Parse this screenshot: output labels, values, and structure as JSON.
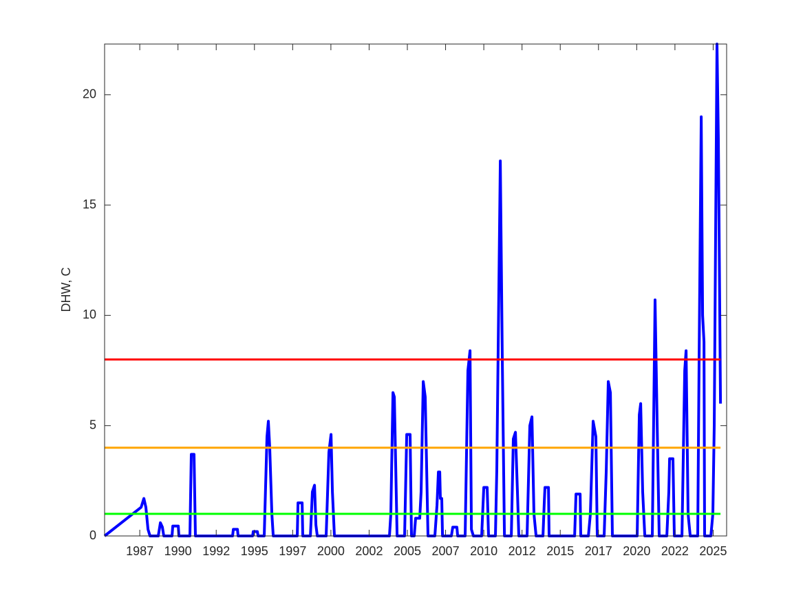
{
  "chart_data": {
    "type": "line",
    "ylabel": "DHW, C",
    "xlim": [
      1985.2,
      2025.88
    ],
    "ylim": [
      0,
      22.3
    ],
    "yticks": [
      0,
      5,
      10,
      15,
      20
    ],
    "xticks": [
      {
        "value": 1987.5,
        "label": "1987"
      },
      {
        "value": 1990,
        "label": "1990"
      },
      {
        "value": 1992.5,
        "label": "1992"
      },
      {
        "value": 1995,
        "label": "1995"
      },
      {
        "value": 1997.5,
        "label": "1997"
      },
      {
        "value": 2000,
        "label": "2000"
      },
      {
        "value": 2002.5,
        "label": "2002"
      },
      {
        "value": 2005,
        "label": "2005"
      },
      {
        "value": 2007.5,
        "label": "2007"
      },
      {
        "value": 2010,
        "label": "2010"
      },
      {
        "value": 2012.5,
        "label": "2012"
      },
      {
        "value": 2015,
        "label": "2015"
      },
      {
        "value": 2017.5,
        "label": "2017"
      },
      {
        "value": 2020,
        "label": "2020"
      },
      {
        "value": 2022.5,
        "label": "2022"
      },
      {
        "value": 2025,
        "label": "2025"
      }
    ],
    "series": [
      {
        "color": "#0000ff",
        "x": [
          1985.2,
          1987.59,
          1987.77,
          1987.9,
          1988.04,
          1988.17,
          1988.71,
          1988.85,
          1988.98,
          1989.07,
          1989.61,
          1989.66,
          1990.02,
          1990.06,
          1990.78,
          1990.87,
          1991.05,
          1991.14,
          1993.57,
          1993.62,
          1993.89,
          1993.93,
          1994.88,
          1994.92,
          1995.19,
          1995.24,
          1995.64,
          1995.82,
          1995.91,
          1996.0,
          1996.14,
          1996.23,
          1997.8,
          1997.85,
          1998.12,
          1998.16,
          1998.66,
          1998.79,
          1998.93,
          1999.02,
          1999.11,
          1999.69,
          1999.87,
          2000.01,
          2000.1,
          2000.23,
          2003.83,
          2003.92,
          2004.06,
          2004.15,
          2004.33,
          2004.82,
          2004.96,
          2005.18,
          2005.27,
          2005.45,
          2005.54,
          2005.81,
          2005.9,
          2006.04,
          2006.17,
          2006.35,
          2006.8,
          2006.94,
          2007.03,
          2007.12,
          2007.16,
          2007.25,
          2007.3,
          2007.88,
          2007.97,
          2008.24,
          2008.29,
          2008.78,
          2008.96,
          2009.1,
          2009.19,
          2009.32,
          2009.86,
          2010.0,
          2010.22,
          2010.31,
          2010.76,
          2010.85,
          2011.08,
          2011.21,
          2011.35,
          2011.8,
          2011.93,
          2012.07,
          2012.2,
          2012.29,
          2012.83,
          2013.01,
          2013.15,
          2013.28,
          2013.42,
          2013.87,
          2013.96,
          2014.0,
          2014.23,
          2014.27,
          2015.94,
          2016.03,
          2016.3,
          2016.34,
          2016.84,
          2016.97,
          2017.15,
          2017.33,
          2017.42,
          2017.87,
          2018.01,
          2018.14,
          2018.28,
          2018.41,
          2020.03,
          2020.17,
          2020.26,
          2020.39,
          2020.53,
          2021.02,
          2021.2,
          2021.34,
          2021.47,
          2021.97,
          2022.1,
          2022.15,
          2022.37,
          2022.46,
          2022.96,
          2023.14,
          2023.23,
          2023.36,
          2023.5,
          2023.99,
          2024.08,
          2024.22,
          2024.31,
          2024.4,
          2024.44,
          2024.85,
          2024.98,
          2025.07,
          2025.25,
          2025.34,
          2025.48
        ],
        "values": [
          0,
          1.3,
          1.7,
          1.3,
          0.3,
          0,
          0,
          0.6,
          0.4,
          0,
          0,
          0.45,
          0.45,
          0,
          0,
          3.7,
          3.7,
          0,
          0,
          0.3,
          0.3,
          0,
          0,
          0.2,
          0.2,
          0,
          0,
          4.5,
          5.2,
          4,
          1,
          0,
          0,
          1.5,
          1.5,
          0,
          0,
          2,
          2.3,
          0.5,
          0,
          0,
          3.8,
          4.6,
          2,
          0,
          0,
          1,
          6.5,
          6.3,
          0,
          0,
          4.6,
          4.6,
          0,
          0,
          0.8,
          0.8,
          2,
          7.0,
          6.3,
          0,
          0,
          1.4,
          2.9,
          2.9,
          1.7,
          1.7,
          0,
          0,
          0.4,
          0.4,
          0,
          0,
          7.5,
          8.4,
          0.3,
          0,
          0,
          2.2,
          2.2,
          0,
          0,
          3,
          17,
          8,
          0,
          0,
          4.4,
          4.7,
          2,
          0,
          0,
          5,
          5.4,
          1,
          0,
          0,
          1.6,
          2.2,
          2.2,
          0,
          0,
          1.9,
          1.9,
          0,
          0,
          1,
          5.2,
          4.5,
          0,
          0,
          3,
          7.0,
          6.5,
          0,
          0,
          5.5,
          6.0,
          2,
          0,
          0,
          10.7,
          5,
          0,
          0,
          2,
          3.5,
          3.5,
          0,
          0,
          7.5,
          8.4,
          1,
          0,
          0,
          8,
          19,
          10,
          8.8,
          0,
          0,
          1,
          5,
          22.3,
          18,
          6
        ]
      },
      {
        "color": "#ff0000",
        "x": [
          1985.2,
          2025.48
        ],
        "values": [
          8,
          8
        ]
      },
      {
        "color": "#ffa500",
        "x": [
          1985.2,
          2025.48
        ],
        "values": [
          4,
          4
        ]
      },
      {
        "color": "#00ff00",
        "x": [
          1985.2,
          2025.48
        ],
        "values": [
          1,
          1
        ]
      }
    ]
  }
}
